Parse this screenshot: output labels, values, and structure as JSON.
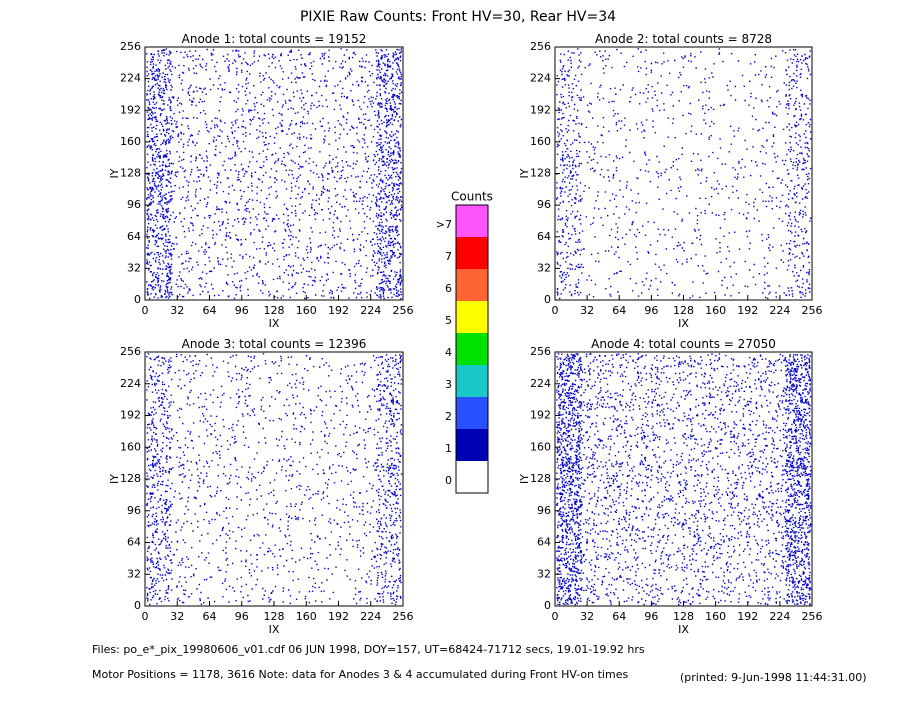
{
  "title": "PIXIE Raw Counts:  Front HV=30, Rear HV=34",
  "chart_data": [
    {
      "type": "heatmap",
      "title": "Anode 1: total counts =",
      "total_counts": 19152,
      "xlabel": "IX",
      "ylabel": "IY",
      "xlim": [
        0,
        256
      ],
      "ylim": [
        0,
        256
      ],
      "xticks": [
        0,
        32,
        64,
        96,
        128,
        160,
        192,
        224,
        256
      ],
      "yticks": [
        0,
        32,
        64,
        96,
        128,
        160,
        192,
        224,
        256
      ],
      "color": "#0000cc"
    },
    {
      "type": "heatmap",
      "title": "Anode 2: total counts =",
      "total_counts": 8728,
      "xlabel": "IX",
      "ylabel": "IY",
      "xlim": [
        0,
        256
      ],
      "ylim": [
        0,
        256
      ],
      "xticks": [
        0,
        32,
        64,
        96,
        128,
        160,
        192,
        224,
        256
      ],
      "yticks": [
        0,
        32,
        64,
        96,
        128,
        160,
        192,
        224,
        256
      ],
      "color": "#0000cc"
    },
    {
      "type": "heatmap",
      "title": "Anode 3: total counts =",
      "total_counts": 12396,
      "xlabel": "IX",
      "ylabel": "IY",
      "xlim": [
        0,
        256
      ],
      "ylim": [
        0,
        256
      ],
      "xticks": [
        0,
        32,
        64,
        96,
        128,
        160,
        192,
        224,
        256
      ],
      "yticks": [
        0,
        32,
        64,
        96,
        128,
        160,
        192,
        224,
        256
      ],
      "color": "#0000cc"
    },
    {
      "type": "heatmap",
      "title": "Anode 4: total counts =",
      "total_counts": 27050,
      "xlabel": "IX",
      "ylabel": "IY",
      "xlim": [
        0,
        256
      ],
      "ylim": [
        0,
        256
      ],
      "xticks": [
        0,
        32,
        64,
        96,
        128,
        160,
        192,
        224,
        256
      ],
      "yticks": [
        0,
        32,
        64,
        96,
        128,
        160,
        192,
        224,
        256
      ],
      "color": "#0000cc"
    },
    {
      "type": "colorbar",
      "title": "Counts",
      "ticks": [
        0,
        1,
        2,
        3,
        4,
        5,
        6,
        7,
        {
          "value": 8,
          "label": ">7"
        }
      ],
      "colors": [
        "#ffffff",
        "#0000b4",
        "#2850ff",
        "#19c8c8",
        "#00e100",
        "#ffff00",
        "#ff6432",
        "#ff0000",
        "#ff55ff"
      ]
    }
  ],
  "footer": {
    "files": "Files: po_e*_pix_19980606_v01.cdf    06 JUN 1998, DOY=157, UT=68424-71712 secs, 19.01-19.92 hrs",
    "motor": "Motor Positions = 1178, 3616    Note: data for Anodes 3 & 4 accumulated during Front HV-on times",
    "printed": "(printed:  9-Jun-1998 11:44:31.00)"
  }
}
